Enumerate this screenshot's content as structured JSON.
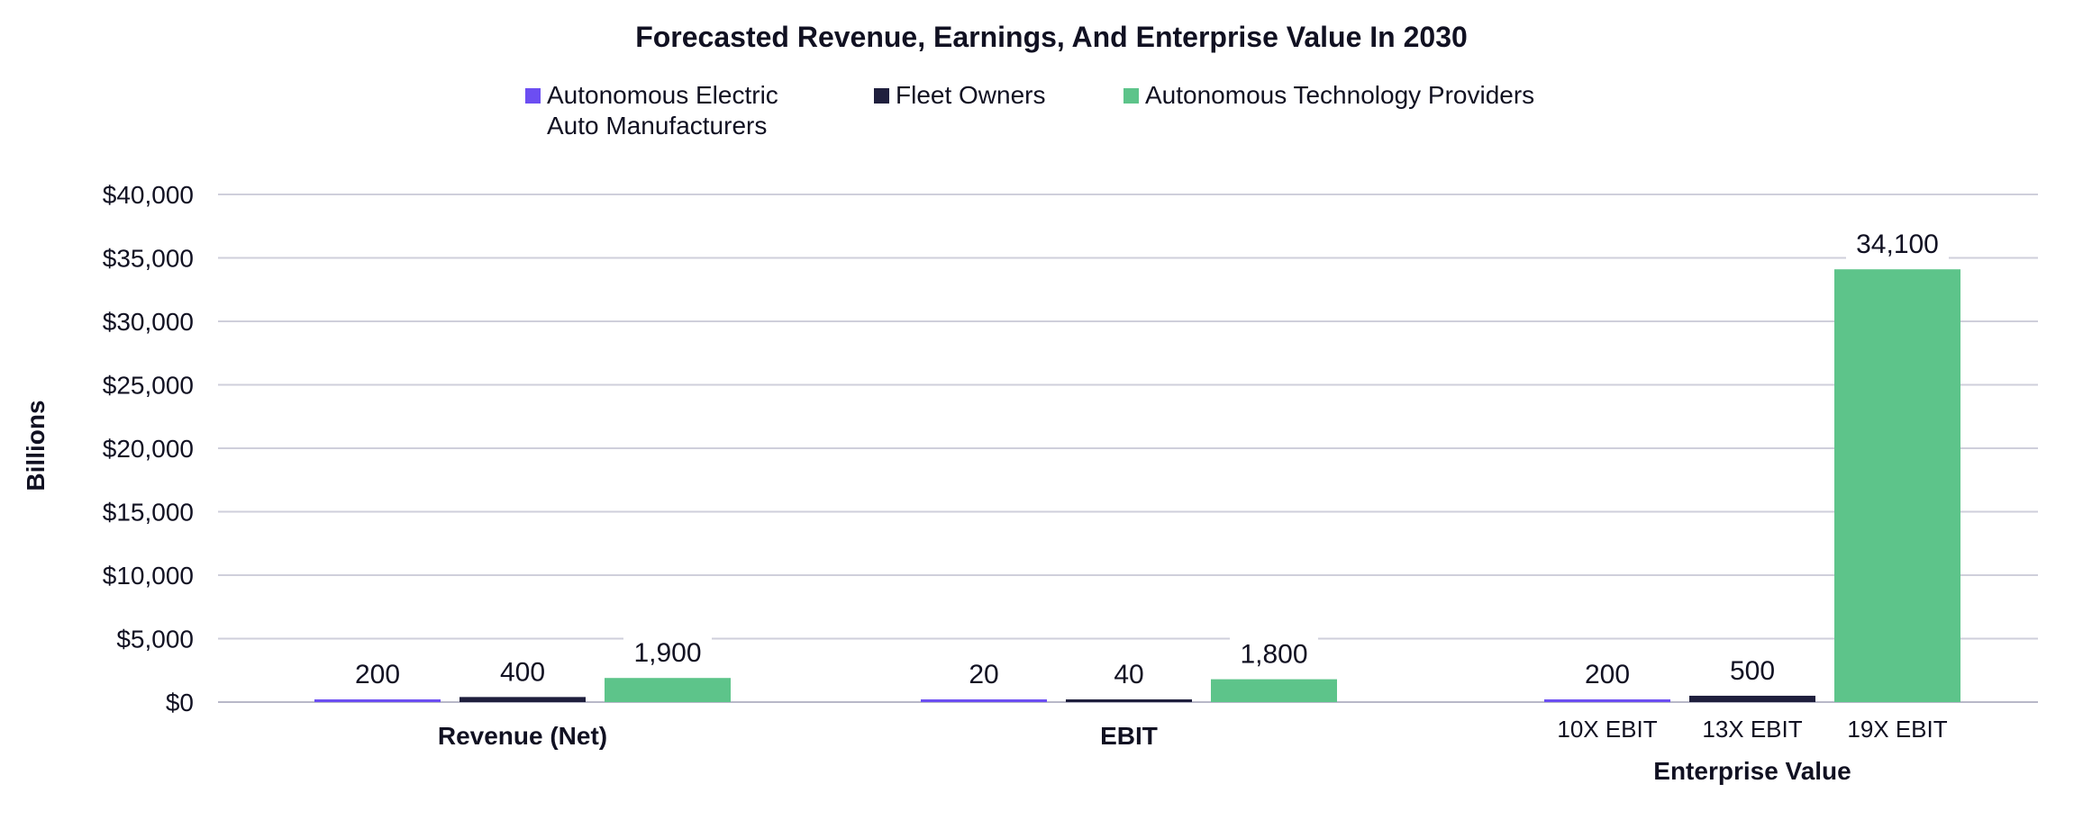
{
  "chart_data": {
    "type": "bar",
    "title": "Forecasted Revenue, Earnings, And Enterprise Value In 2030",
    "ylabel": "Billions",
    "ylim": [
      0,
      40000
    ],
    "yticks": [
      0,
      5000,
      10000,
      15000,
      20000,
      25000,
      30000,
      35000,
      40000
    ],
    "ytick_labels": [
      "$0",
      "$5,000",
      "$10,000",
      "$15,000",
      "$20,000",
      "$25,000",
      "$30,000",
      "$35,000",
      "$40,000"
    ],
    "grid": true,
    "legend_position": "top",
    "legend": [
      {
        "lines": [
          "Autonomous Electric",
          "Auto Manufacturers"
        ],
        "color": "#6c4ef2"
      },
      {
        "lines": [
          "Fleet Owners"
        ],
        "color": "#1f1f3d"
      },
      {
        "lines": [
          "Autonomous Technology Providers"
        ],
        "color": "#5dc48a"
      }
    ],
    "groups": [
      {
        "label": "Revenue (Net)",
        "sub_labels": [
          "",
          "",
          ""
        ],
        "values": [
          200,
          400,
          1900
        ],
        "value_labels": [
          "200",
          "400",
          "1,900"
        ]
      },
      {
        "label": "EBIT",
        "sub_labels": [
          "",
          "",
          ""
        ],
        "values": [
          20,
          40,
          1800
        ],
        "value_labels": [
          "20",
          "40",
          "1,800"
        ]
      },
      {
        "label": "Enterprise Value",
        "sub_labels": [
          "10X EBIT",
          "13X EBIT",
          "19X EBIT"
        ],
        "values": [
          200,
          500,
          34100
        ],
        "value_labels": [
          "200",
          "500",
          "34,100"
        ]
      }
    ]
  }
}
